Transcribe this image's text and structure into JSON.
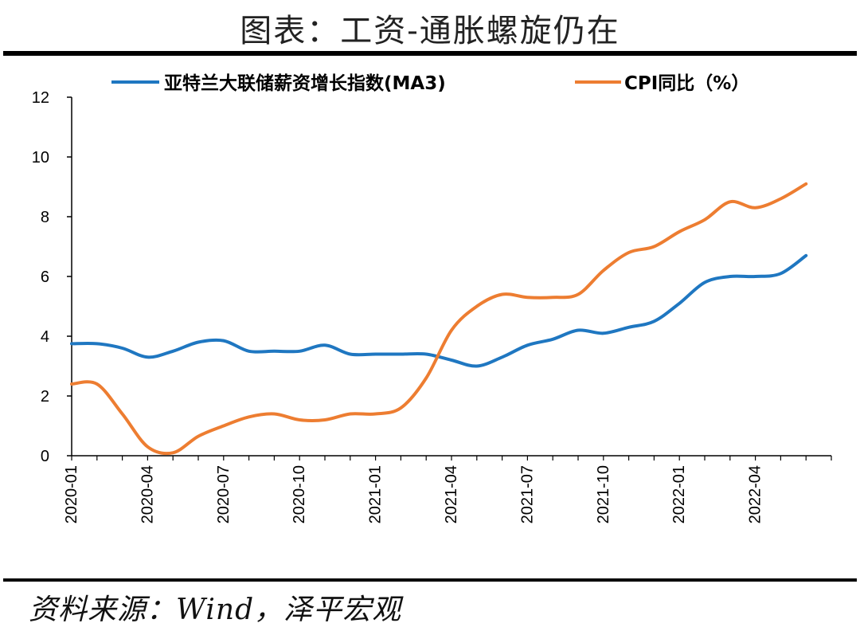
{
  "title": "图表：工资-通胀螺旋仍在",
  "source": "资料来源：Wind，泽平宏观",
  "colors": {
    "wage": "#1f77c1",
    "cpi": "#ed7d31",
    "axis": "#000000"
  },
  "chart_data": {
    "type": "line",
    "title": "图表：工资-通胀螺旋仍在",
    "xlabel": "",
    "ylabel": "",
    "ylim": [
      0,
      12
    ],
    "yticks": [
      0,
      2,
      4,
      6,
      8,
      10,
      12
    ],
    "grid": false,
    "legend_position": "top",
    "x": [
      "2020-01",
      "2020-02",
      "2020-03",
      "2020-04",
      "2020-05",
      "2020-06",
      "2020-07",
      "2020-08",
      "2020-09",
      "2020-10",
      "2020-11",
      "2020-12",
      "2021-01",
      "2021-02",
      "2021-03",
      "2021-04",
      "2021-05",
      "2021-06",
      "2021-07",
      "2021-08",
      "2021-09",
      "2021-10",
      "2021-11",
      "2021-12",
      "2022-01",
      "2022-02",
      "2022-03",
      "2022-04",
      "2022-05",
      "2022-06"
    ],
    "xtick_labels": [
      "2020-01",
      "2020-04",
      "2020-07",
      "2020-10",
      "2021-01",
      "2021-04",
      "2021-07",
      "2021-10",
      "2022-01",
      "2022-04"
    ],
    "series": [
      {
        "name": "亚特兰大联储薪资增长指数(MA3)",
        "color": "#1f77c1",
        "values": [
          3.75,
          3.75,
          3.6,
          3.3,
          3.5,
          3.8,
          3.85,
          3.5,
          3.5,
          3.5,
          3.7,
          3.4,
          3.4,
          3.4,
          3.4,
          3.2,
          3.0,
          3.3,
          3.7,
          3.9,
          4.2,
          4.1,
          4.3,
          4.5,
          5.1,
          5.8,
          6.0,
          6.0,
          6.1,
          6.7
        ]
      },
      {
        "name": "CPI同比（%）",
        "color": "#ed7d31",
        "values": [
          2.4,
          2.4,
          1.4,
          0.3,
          0.1,
          0.65,
          1.0,
          1.3,
          1.4,
          1.2,
          1.2,
          1.4,
          1.4,
          1.6,
          2.6,
          4.2,
          5.0,
          5.4,
          5.3,
          5.3,
          5.4,
          6.2,
          6.8,
          7.0,
          7.5,
          7.9,
          8.5,
          8.3,
          8.6,
          9.1
        ]
      }
    ]
  }
}
